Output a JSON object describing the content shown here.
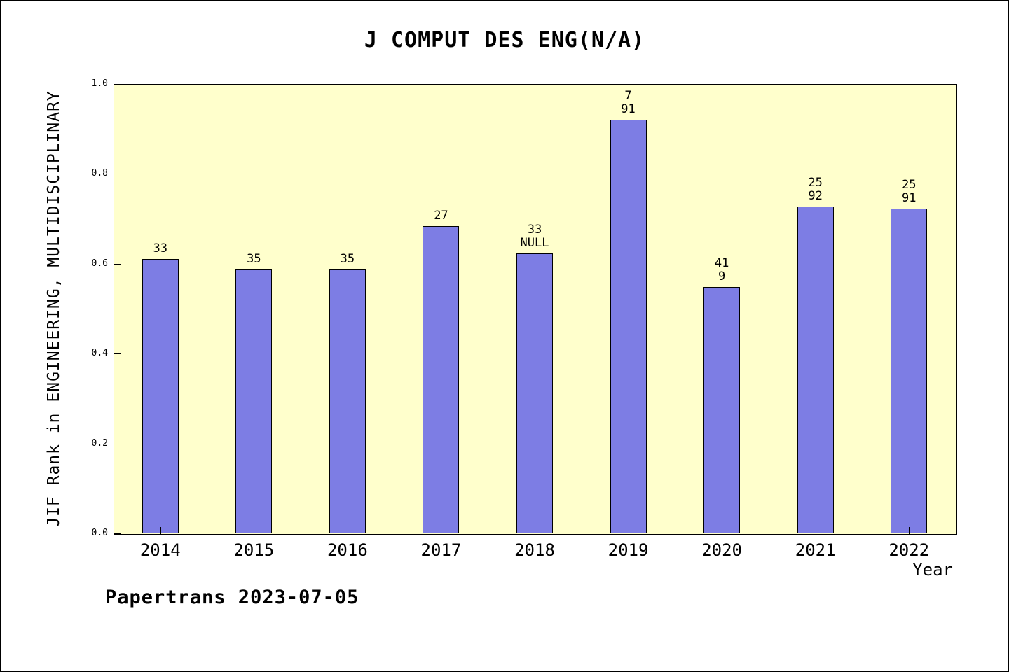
{
  "title": "J COMPUT DES ENG(N/A)",
  "footer": "Papertrans 2023-07-05",
  "chart_data": {
    "type": "bar",
    "title": "J COMPUT DES ENG(N/A)",
    "xlabel": "Year",
    "ylabel": "JIF Rank in ENGINEERING, MULTIDISCIPLINARY",
    "categories": [
      "2014",
      "2015",
      "2016",
      "2017",
      "2018",
      "2019",
      "2020",
      "2021",
      "2022"
    ],
    "values": [
      0.611,
      0.587,
      0.587,
      0.684,
      0.623,
      0.92,
      0.548,
      0.727,
      0.723
    ],
    "bar_labels": [
      [
        "33"
      ],
      [
        "35"
      ],
      [
        "35"
      ],
      [
        "27"
      ],
      [
        "33",
        "NULL"
      ],
      [
        "7",
        "91"
      ],
      [
        "41",
        "9"
      ],
      [
        "25",
        "92"
      ],
      [
        "25",
        "91"
      ]
    ],
    "ylim": [
      0.0,
      1.0
    ],
    "yticks": [
      "0.0",
      "0.2",
      "0.4",
      "0.6",
      "0.8",
      "1.0"
    ],
    "grid": false,
    "legend": "none",
    "colors": {
      "bar_fill": "#7d7de4",
      "bar_border": "#000000",
      "plot_bg": "#ffffcc",
      "page_bg": "#ffffff",
      "text": "#000000"
    }
  }
}
